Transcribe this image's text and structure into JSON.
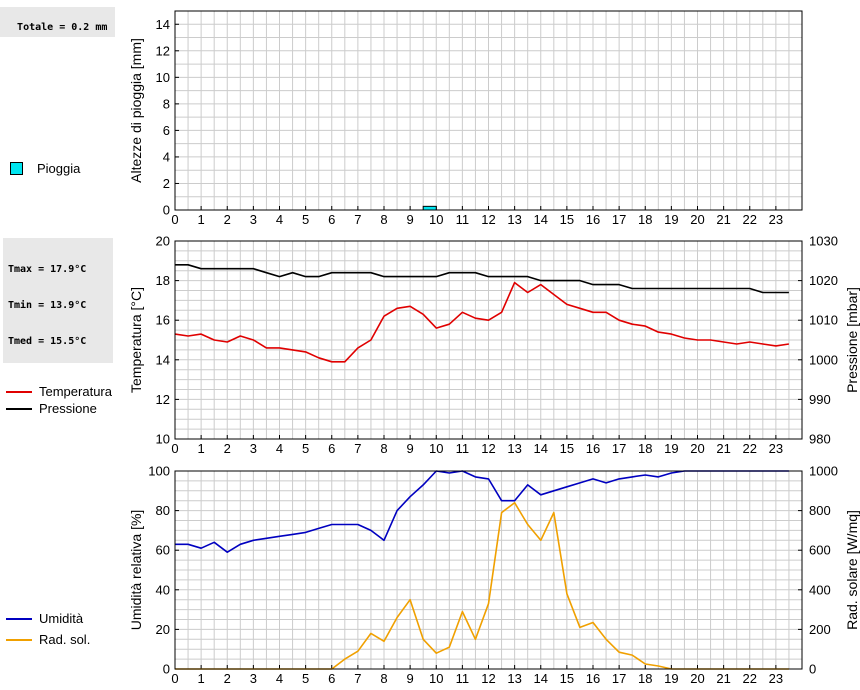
{
  "stats": {
    "rain_total": "Totale = 0.2 mm",
    "tmax": "Tmax = 17.9°C",
    "tmin": "Tmin = 13.9°C",
    "tmed": "Tmed = 15.5°C"
  },
  "colors": {
    "rain": "#00e5f0",
    "temperature": "#e00000",
    "pressure": "#000000",
    "humidity": "#0000c0",
    "radiation": "#f0a000",
    "grid": "#cccccc"
  },
  "legend": {
    "rain": "Pioggia",
    "temperature": "Temperatura",
    "pressure": "Pressione",
    "humidity": "Umidità",
    "radiation": "Rad. sol."
  },
  "chart_data": [
    {
      "type": "bar",
      "ylabel": "Altezze di pioggia [mm]",
      "x_ticks": [
        "0",
        "1",
        "2",
        "3",
        "4",
        "5",
        "6",
        "7",
        "8",
        "9",
        "10",
        "11",
        "12",
        "13",
        "14",
        "15",
        "16",
        "17",
        "18",
        "19",
        "20",
        "21",
        "22",
        "23"
      ],
      "xlim": [
        0,
        24
      ],
      "ylim": [
        0,
        15
      ],
      "y_ticks": [
        "0",
        "2",
        "4",
        "6",
        "8",
        "10",
        "12",
        "14"
      ],
      "grid": true,
      "series": [
        {
          "name": "Pioggia",
          "x": [
            9.75
          ],
          "values": [
            0.2
          ]
        }
      ]
    },
    {
      "type": "line",
      "ylabel": "Temperatura [°C]",
      "y2label": "Pressione [mbar]",
      "x_ticks": [
        "0",
        "1",
        "2",
        "3",
        "4",
        "5",
        "6",
        "7",
        "8",
        "9",
        "10",
        "11",
        "12",
        "13",
        "14",
        "15",
        "16",
        "17",
        "18",
        "19",
        "20",
        "21",
        "22",
        "23"
      ],
      "xlim": [
        0,
        24
      ],
      "ylim": [
        10,
        20
      ],
      "y_ticks": [
        "10",
        "12",
        "14",
        "16",
        "18",
        "20"
      ],
      "y2lim": [
        980,
        1030
      ],
      "y2_ticks": [
        "980",
        "990",
        "1000",
        "1010",
        "1020",
        "1030"
      ],
      "grid": true,
      "series": [
        {
          "name": "Temperatura",
          "axis": "left",
          "x": [
            0,
            0.5,
            1,
            1.5,
            2,
            2.5,
            3,
            3.5,
            4,
            4.5,
            5,
            5.5,
            6,
            6.5,
            7,
            7.5,
            8,
            8.5,
            9,
            9.5,
            10,
            10.5,
            11,
            11.5,
            12,
            12.5,
            13,
            13.5,
            14,
            14.5,
            15,
            15.5,
            16,
            16.5,
            17,
            17.5,
            18,
            18.5,
            19,
            19.5,
            20,
            20.5,
            21,
            21.5,
            22,
            22.5,
            23,
            23.5
          ],
          "values": [
            15.3,
            15.2,
            15.3,
            15.0,
            14.9,
            15.2,
            15.0,
            14.6,
            14.6,
            14.5,
            14.4,
            14.1,
            13.9,
            13.9,
            14.6,
            15.0,
            16.2,
            16.6,
            16.7,
            16.3,
            15.6,
            15.8,
            16.4,
            16.1,
            16.0,
            16.4,
            17.9,
            17.4,
            17.8,
            17.3,
            16.8,
            16.6,
            16.4,
            16.4,
            16.0,
            15.8,
            15.7,
            15.4,
            15.3,
            15.1,
            15.0,
            15.0,
            14.9,
            14.8,
            14.9,
            14.8,
            14.7,
            14.8
          ]
        },
        {
          "name": "Pressione",
          "axis": "right",
          "x": [
            0,
            0.5,
            1,
            1.5,
            2,
            2.5,
            3,
            3.5,
            4,
            4.5,
            5,
            5.5,
            6,
            6.5,
            7,
            7.5,
            8,
            8.5,
            9,
            9.5,
            10,
            10.5,
            11,
            11.5,
            12,
            12.5,
            13,
            13.5,
            14,
            14.5,
            15,
            15.5,
            16,
            16.5,
            17,
            17.5,
            18,
            18.5,
            19,
            19.5,
            20,
            20.5,
            21,
            21.5,
            22,
            22.5,
            23,
            23.5
          ],
          "values": [
            1024,
            1024,
            1023,
            1023,
            1023,
            1023,
            1023,
            1022,
            1021,
            1022,
            1021,
            1021,
            1022,
            1022,
            1022,
            1022,
            1021,
            1021,
            1021,
            1021,
            1021,
            1022,
            1022,
            1022,
            1021,
            1021,
            1021,
            1021,
            1020,
            1020,
            1020,
            1020,
            1019,
            1019,
            1019,
            1018,
            1018,
            1018,
            1018,
            1018,
            1018,
            1018,
            1018,
            1018,
            1018,
            1017,
            1017,
            1017
          ]
        }
      ]
    },
    {
      "type": "line",
      "ylabel": "Umidità relativa [%]",
      "y2label": "Rad. solare [W/mq]",
      "x_ticks": [
        "0",
        "1",
        "2",
        "3",
        "4",
        "5",
        "6",
        "7",
        "8",
        "9",
        "10",
        "11",
        "12",
        "13",
        "14",
        "15",
        "16",
        "17",
        "18",
        "19",
        "20",
        "21",
        "22",
        "23"
      ],
      "xlim": [
        0,
        24
      ],
      "ylim": [
        0,
        100
      ],
      "y_ticks": [
        "0",
        "20",
        "40",
        "60",
        "80",
        "100"
      ],
      "y2lim": [
        0,
        1000
      ],
      "y2_ticks": [
        "0",
        "200",
        "400",
        "600",
        "800",
        "1000"
      ],
      "grid": true,
      "series": [
        {
          "name": "Umidità",
          "axis": "left",
          "x": [
            0,
            0.5,
            1,
            1.5,
            2,
            2.5,
            3,
            3.5,
            4,
            4.5,
            5,
            5.5,
            6,
            6.5,
            7,
            7.5,
            8,
            8.5,
            9,
            9.5,
            10,
            10.5,
            11,
            11.5,
            12,
            12.5,
            13,
            13.5,
            14,
            14.5,
            15,
            15.5,
            16,
            16.5,
            17,
            17.5,
            18,
            18.5,
            19,
            19.5,
            20,
            20.5,
            21,
            21.5,
            22,
            22.5,
            23,
            23.5
          ],
          "values": [
            63,
            63,
            61,
            64,
            59,
            63,
            65,
            66,
            67,
            68,
            69,
            71,
            73,
            73,
            73,
            70,
            65,
            80,
            87,
            93,
            100,
            99,
            100,
            97,
            96,
            85,
            85,
            93,
            88,
            90,
            92,
            94,
            96,
            94,
            96,
            97,
            98,
            97,
            99,
            100,
            100,
            100,
            100,
            100,
            100,
            100,
            100,
            100
          ]
        },
        {
          "name": "Rad. sol.",
          "axis": "right",
          "x": [
            0,
            0.5,
            1,
            1.5,
            2,
            2.5,
            3,
            3.5,
            4,
            4.5,
            5,
            5.5,
            6,
            6.5,
            7,
            7.5,
            8,
            8.5,
            9,
            9.5,
            10,
            10.5,
            11,
            11.5,
            12,
            12.5,
            13,
            13.5,
            14,
            14.5,
            15,
            15.5,
            16,
            16.5,
            17,
            17.5,
            18,
            18.5,
            19,
            19.5,
            20,
            20.5,
            21,
            21.5,
            22,
            22.5,
            23,
            23.5
          ],
          "values": [
            0,
            0,
            0,
            0,
            0,
            0,
            0,
            0,
            0,
            0,
            0,
            0,
            0,
            50,
            90,
            180,
            140,
            260,
            350,
            150,
            80,
            110,
            290,
            150,
            330,
            790,
            840,
            730,
            650,
            790,
            380,
            210,
            235,
            150,
            85,
            70,
            25,
            15,
            0,
            0,
            0,
            0,
            0,
            0,
            0,
            0,
            0,
            0
          ]
        }
      ]
    }
  ]
}
